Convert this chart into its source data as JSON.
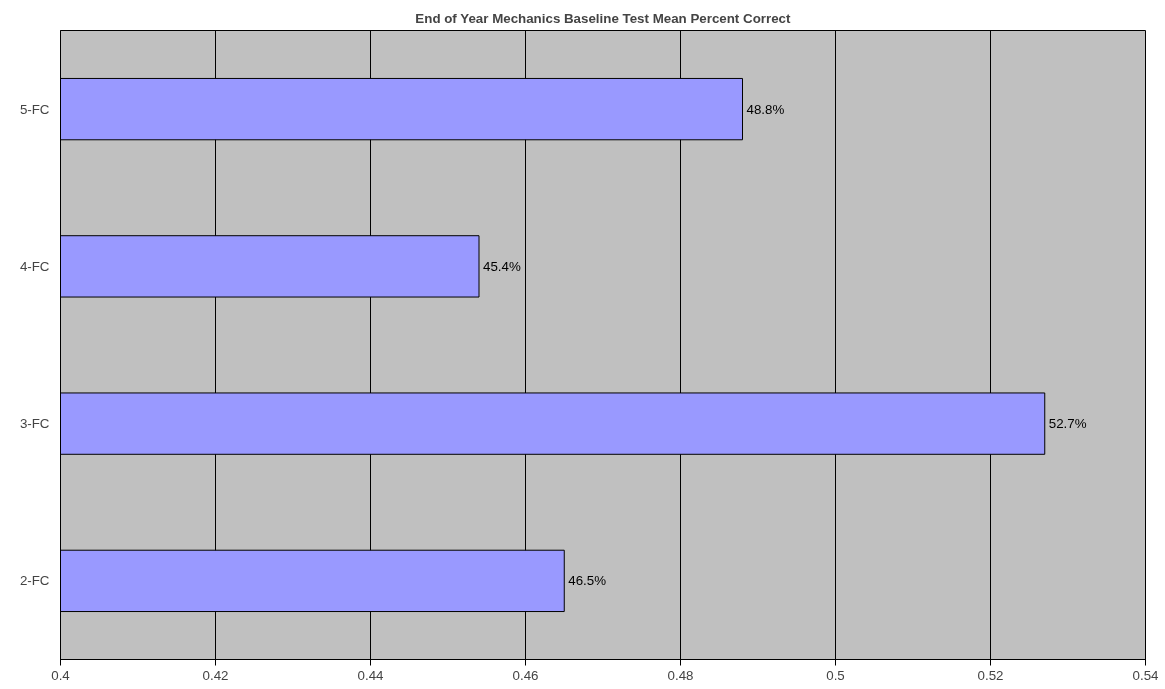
{
  "chart_data": {
    "type": "bar",
    "orientation": "horizontal",
    "title": "End of Year Mechanics Baseline Test Mean Percent Correct",
    "categories": [
      "5-FC",
      "4-FC",
      "3-FC",
      "2-FC"
    ],
    "values": [
      0.488,
      0.454,
      0.527,
      0.465
    ],
    "value_labels": [
      "48.8%",
      "45.4%",
      "52.7%",
      "46.5%"
    ],
    "color": "#9999ff",
    "xlim": [
      0.4,
      0.54
    ],
    "xticks": [
      0.4,
      0.42,
      0.44,
      0.46,
      0.48,
      0.5,
      0.52,
      0.54
    ],
    "grid": "x"
  }
}
